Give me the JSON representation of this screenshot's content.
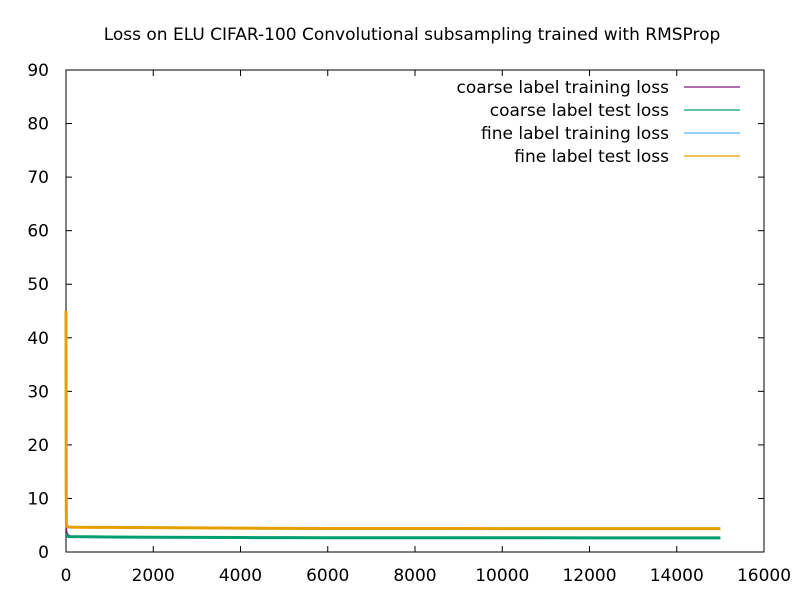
{
  "chart_data": {
    "type": "line",
    "title": "Loss on ELU CIFAR-100 Convolutional subsampling trained with RMSProp",
    "xlabel": "",
    "ylabel": "",
    "xlim": [
      0,
      16000
    ],
    "ylim": [
      0,
      90
    ],
    "x_ticks": [
      0,
      2000,
      4000,
      6000,
      8000,
      10000,
      12000,
      14000,
      16000
    ],
    "y_ticks": [
      0,
      10,
      20,
      30,
      40,
      50,
      60,
      70,
      80,
      90
    ],
    "x_tick_labels": [
      "0",
      "2000",
      "4000",
      "6000",
      "8000",
      "10000",
      "12000",
      "14000",
      "16000"
    ],
    "y_tick_labels": [
      "0",
      "10",
      "20",
      "30",
      "40",
      "50",
      "60",
      "70",
      "80",
      "90"
    ],
    "grid": false,
    "legend_position": "top-right",
    "series": [
      {
        "name": "coarse label training loss",
        "color": "#7b1a7b",
        "x": [
          0,
          5,
          10,
          20,
          50,
          100,
          200,
          500,
          1000,
          2000,
          3000,
          4000,
          5000,
          6000,
          7000,
          8000,
          9000,
          10000,
          11000,
          12000,
          13000,
          14000,
          15000
        ],
        "y": [
          45,
          12,
          4.5,
          3.6,
          3.2,
          3.0,
          2.9,
          2.85,
          2.8,
          2.75,
          2.7,
          2.68,
          2.65,
          2.63,
          2.62,
          2.61,
          2.6,
          2.6,
          2.59,
          2.59,
          2.58,
          2.58,
          2.58
        ]
      },
      {
        "name": "coarse label test loss",
        "color": "#009e73",
        "x": [
          0,
          10,
          50,
          100,
          500,
          1000,
          2000,
          3000,
          4000,
          5000,
          6000,
          7000,
          8000,
          9000,
          10000,
          11000,
          12000,
          13000,
          14000,
          15000
        ],
        "y": [
          3.0,
          3.0,
          2.9,
          2.88,
          2.85,
          2.8,
          2.75,
          2.72,
          2.7,
          2.68,
          2.67,
          2.66,
          2.66,
          2.65,
          2.65,
          2.65,
          2.64,
          2.64,
          2.64,
          2.64
        ]
      },
      {
        "name": "fine label training loss",
        "color": "#56b4e9",
        "x": [
          0,
          5,
          10,
          20,
          50,
          100,
          500,
          1000,
          2000,
          3000,
          4000,
          5000,
          6000,
          7000,
          8000,
          9000,
          10000,
          11000,
          12000,
          13000,
          14000,
          15000
        ],
        "y": [
          20,
          8,
          5.2,
          4.9,
          4.8,
          4.7,
          4.6,
          4.55,
          4.5,
          4.45,
          4.4,
          4.38,
          4.36,
          4.35,
          4.34,
          4.33,
          4.32,
          4.32,
          4.31,
          4.31,
          4.3,
          4.3
        ]
      },
      {
        "name": "fine label test loss",
        "color": "#e69f00",
        "x": [
          0,
          5,
          10,
          20,
          50,
          100,
          500,
          1000,
          2000,
          3000,
          4000,
          5000,
          6000,
          7000,
          8000,
          9000,
          10000,
          11000,
          12000,
          13000,
          14000,
          15000
        ],
        "y": [
          45,
          10,
          5.0,
          4.8,
          4.7,
          4.65,
          4.6,
          4.6,
          4.55,
          4.5,
          4.45,
          4.42,
          4.4,
          4.4,
          4.38,
          4.38,
          4.37,
          4.37,
          4.36,
          4.36,
          4.36,
          4.36
        ]
      }
    ]
  }
}
